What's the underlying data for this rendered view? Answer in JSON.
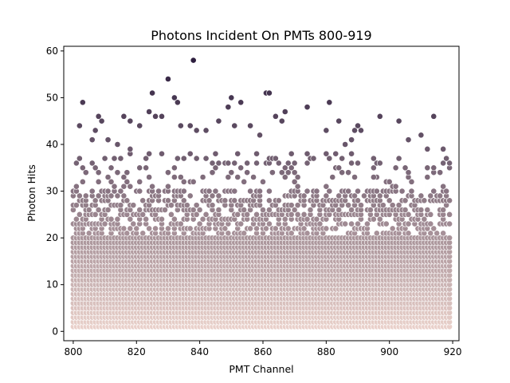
{
  "chart_data": {
    "type": "scatter",
    "title": "Photons Incident On PMTs 800-919",
    "xlabel": "PMT Channel",
    "ylabel": "Photon Hits",
    "xlim": [
      797,
      922
    ],
    "ylim": [
      -2,
      61
    ],
    "xticks": [
      800,
      820,
      840,
      860,
      880,
      900,
      920
    ],
    "yticks": [
      0,
      10,
      20,
      30,
      40,
      50,
      60
    ],
    "grid": false,
    "legend": "none",
    "color_low": "#ecd3cc",
    "color_high": "#2d1e3e",
    "channels": [
      800,
      919
    ],
    "points": [
      {
        "x": 802,
        "y": 44
      },
      {
        "x": 803,
        "y": 49
      },
      {
        "x": 807,
        "y": 43
      },
      {
        "x": 808,
        "y": 46
      },
      {
        "x": 809,
        "y": 45
      },
      {
        "x": 814,
        "y": 40
      },
      {
        "x": 816,
        "y": 46
      },
      {
        "x": 818,
        "y": 45
      },
      {
        "x": 821,
        "y": 44
      },
      {
        "x": 824,
        "y": 47
      },
      {
        "x": 825,
        "y": 51
      },
      {
        "x": 826,
        "y": 46
      },
      {
        "x": 828,
        "y": 46
      },
      {
        "x": 830,
        "y": 54
      },
      {
        "x": 832,
        "y": 50
      },
      {
        "x": 833,
        "y": 49
      },
      {
        "x": 834,
        "y": 44
      },
      {
        "x": 837,
        "y": 44
      },
      {
        "x": 838,
        "y": 58
      },
      {
        "x": 839,
        "y": 43
      },
      {
        "x": 842,
        "y": 43
      },
      {
        "x": 846,
        "y": 45
      },
      {
        "x": 849,
        "y": 48
      },
      {
        "x": 850,
        "y": 50
      },
      {
        "x": 851,
        "y": 44
      },
      {
        "x": 853,
        "y": 49
      },
      {
        "x": 856,
        "y": 44
      },
      {
        "x": 859,
        "y": 42
      },
      {
        "x": 861,
        "y": 51
      },
      {
        "x": 862,
        "y": 51
      },
      {
        "x": 864,
        "y": 46
      },
      {
        "x": 866,
        "y": 45
      },
      {
        "x": 867,
        "y": 47
      },
      {
        "x": 874,
        "y": 48
      },
      {
        "x": 880,
        "y": 43
      },
      {
        "x": 881,
        "y": 49
      },
      {
        "x": 884,
        "y": 45
      },
      {
        "x": 886,
        "y": 40
      },
      {
        "x": 888,
        "y": 41
      },
      {
        "x": 889,
        "y": 43
      },
      {
        "x": 890,
        "y": 44
      },
      {
        "x": 891,
        "y": 43
      },
      {
        "x": 897,
        "y": 46
      },
      {
        "x": 903,
        "y": 45
      },
      {
        "x": 906,
        "y": 41
      },
      {
        "x": 910,
        "y": 42
      },
      {
        "x": 914,
        "y": 46
      },
      {
        "x": 917,
        "y": 39
      },
      {
        "x": 806,
        "y": 41
      },
      {
        "x": 811,
        "y": 41
      },
      {
        "x": 818,
        "y": 39
      },
      {
        "x": 841,
        "y": 33
      },
      {
        "x": 858,
        "y": 38
      },
      {
        "x": 870,
        "y": 36
      },
      {
        "x": 895,
        "y": 33
      },
      {
        "x": 912,
        "y": 39
      }
    ]
  }
}
